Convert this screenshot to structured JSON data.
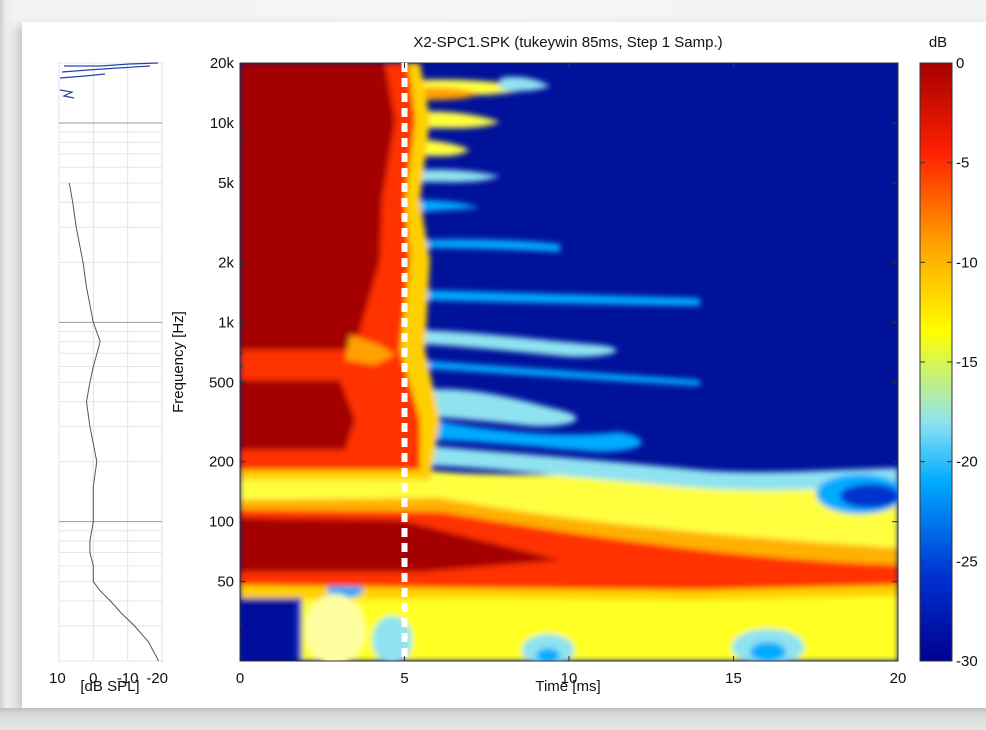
{
  "chart_data": [
    {
      "type": "line",
      "xlabel": "[dB SPL]",
      "xticks": [
        "10",
        "0",
        "-10",
        "-20"
      ],
      "xlim": [
        10,
        -20
      ],
      "ylim_hz": [
        20,
        20000
      ],
      "yscale": "log",
      "series": [
        {
          "values_hz": [
            20,
            25,
            30,
            35,
            40,
            45,
            50,
            60,
            70,
            80,
            100,
            150,
            200,
            300,
            400,
            500,
            600,
            800,
            1000,
            1500,
            2000,
            3000,
            4000,
            5000
          ],
          "values_db": [
            -19,
            -16,
            -12,
            -8,
            -5,
            -2,
            0,
            0,
            1,
            1,
            0,
            0,
            -1,
            1,
            2,
            1,
            0,
            -2,
            0,
            2,
            3,
            5,
            6,
            7
          ]
        }
      ],
      "grid": true
    },
    {
      "type": "heatmap",
      "title": "X2-SPC1.SPK (tukeywin 85ms, Step 1 Samp.)",
      "xlabel": "Time [ms]",
      "ylabel": "Frequency [Hz]",
      "xlim": [
        0,
        20
      ],
      "xticks": [
        "0",
        "5",
        "10",
        "15",
        "20"
      ],
      "yscale": "log",
      "ylim_hz": [
        20,
        20000
      ],
      "yticks": [
        {
          "value": 50,
          "label": "50"
        },
        {
          "value": 100,
          "label": "100"
        },
        {
          "value": 200,
          "label": "200"
        },
        {
          "value": 500,
          "label": "500"
        },
        {
          "value": 1000,
          "label": "1k"
        },
        {
          "value": 2000,
          "label": "2k"
        },
        {
          "value": 5000,
          "label": "5k"
        },
        {
          "value": 10000,
          "label": "10k"
        },
        {
          "value": 20000,
          "label": "20k"
        }
      ],
      "marker_line_ms": 5,
      "colorbar": {
        "label": "dB",
        "range": [
          -30,
          0
        ],
        "ticks": [
          "0",
          "-5",
          "-10",
          "-15",
          "-20",
          "-25",
          "-30"
        ],
        "colormap": [
          "#00008f",
          "#0030d0",
          "#00aaff",
          "#8fe3f0",
          "#ffff00",
          "#ffa000",
          "#ff2000",
          "#a50000"
        ]
      },
      "decay_time_ms": [
        {
          "freq_hz": 20,
          "ms": 0
        },
        {
          "freq_hz": 30,
          "ms": 1
        },
        {
          "freq_hz": 40,
          "ms": 18
        },
        {
          "freq_hz": 55,
          "ms": 20
        },
        {
          "freq_hz": 70,
          "ms": 20
        },
        {
          "freq_hz": 90,
          "ms": 16
        },
        {
          "freq_hz": 120,
          "ms": 13
        },
        {
          "freq_hz": 160,
          "ms": 10
        },
        {
          "freq_hz": 200,
          "ms": 8
        },
        {
          "freq_hz": 300,
          "ms": 6
        },
        {
          "freq_hz": 500,
          "ms": 5.3
        },
        {
          "freq_hz": 1000,
          "ms": 5.2
        },
        {
          "freq_hz": 2000,
          "ms": 5
        },
        {
          "freq_hz": 5000,
          "ms": 4.8
        },
        {
          "freq_hz": 10000,
          "ms": 5
        },
        {
          "freq_hz": 15000,
          "ms": 6
        },
        {
          "freq_hz": 20000,
          "ms": 4
        }
      ]
    }
  ]
}
